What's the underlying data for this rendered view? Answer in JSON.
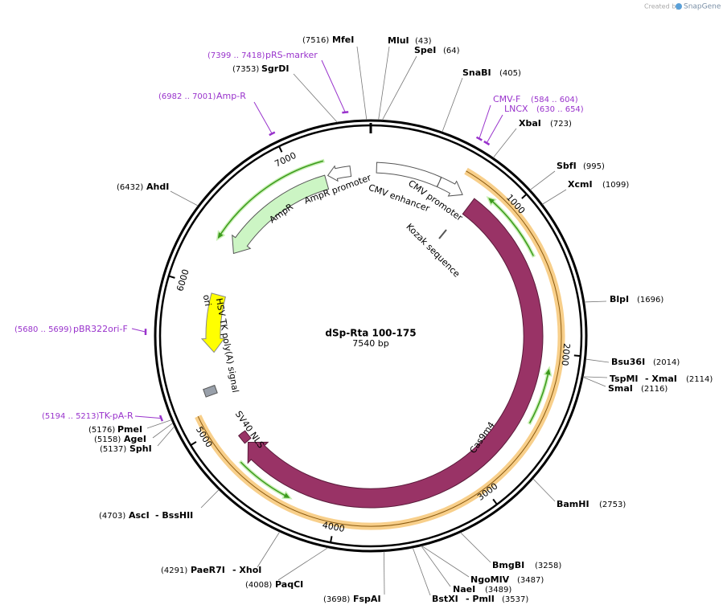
{
  "header": {
    "credit": "Created by",
    "brand": "SnapGene"
  },
  "map": {
    "name": "dSp-Rta 100-175",
    "size": "7540 bp",
    "ticks": [
      "1000",
      "2000",
      "3000",
      "4000",
      "5000",
      "6000",
      "7000"
    ]
  },
  "sites": [
    {
      "name": "MfeI",
      "position": "(7516)"
    },
    {
      "name": "MluI",
      "position": "(43)"
    },
    {
      "name": "SpeI",
      "position": "(64)"
    },
    {
      "name": "SgrDI",
      "position": "(7353)"
    },
    {
      "name": "SnaBI",
      "position": "(405)"
    },
    {
      "name": "XbaI",
      "position": "(723)"
    },
    {
      "name": "SbfI",
      "position": "(995)"
    },
    {
      "name": "XcmI",
      "position": "(1099)"
    },
    {
      "name": "AhdI",
      "position": "(6432)"
    },
    {
      "name": "BlpI",
      "position": "(1696)"
    },
    {
      "name": "Bsu36I",
      "position": "(2014)"
    },
    {
      "name": "TspMI",
      "alias": "- XmaI",
      "position": "(2114)"
    },
    {
      "name": "SmaI",
      "position": "(2116)"
    },
    {
      "name": "BamHI",
      "position": "(2753)"
    },
    {
      "name": "BmgBI",
      "position": "(3258)"
    },
    {
      "name": "NgoMIV",
      "position": "(3487)"
    },
    {
      "name": "NaeI",
      "position": "(3489)"
    },
    {
      "name": "BstXI",
      "alias": "- PmlI",
      "position": "(3537)"
    },
    {
      "name": "FspAI",
      "position": "(3698)"
    },
    {
      "name": "PaqCI",
      "position": "(4008)"
    },
    {
      "name": "PaeR7I",
      "alias": "- XhoI",
      "position": "(4291)"
    },
    {
      "name": "AscI",
      "alias": "- BssHII",
      "position": "(4703)"
    },
    {
      "name": "SphI",
      "position": "(5137)"
    },
    {
      "name": "AgeI",
      "position": "(5158)"
    },
    {
      "name": "PmeI",
      "position": "(5176)"
    }
  ],
  "primers": [
    {
      "name": "pRS-marker",
      "range": "(7399 .. 7418)"
    },
    {
      "name": "Amp-R",
      "range": "(6982 .. 7001)"
    },
    {
      "name": "CMV-F",
      "range": "(584 .. 604)"
    },
    {
      "name": "LNCX",
      "range": "(630 .. 654)"
    },
    {
      "name": "pBR322ori-F",
      "range": "(5680 .. 5699)"
    },
    {
      "name": "TK-pA-R",
      "range": "(5194 .. 5213)"
    }
  ],
  "features": [
    "CMV enhancer",
    "CMV promoter",
    "Kozak sequence",
    "AmpR promoter",
    "AmpR",
    "ori",
    "HSV TK poly(A) signal",
    "SV40 NLS",
    "Cas9m4"
  ]
}
